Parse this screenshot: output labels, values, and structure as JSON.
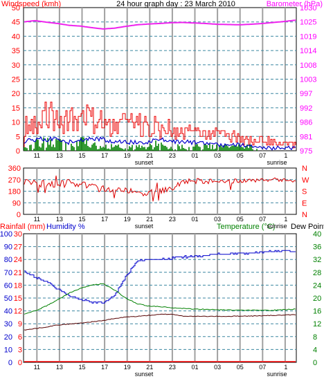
{
  "title": "24 hour graph day : 23 March 2010",
  "colors": {
    "frame": "#000000",
    "grid_v": "#a0a0a0",
    "grid_h": "#3a86a0",
    "wind_axis": "#ff0000",
    "baro_axis": "#ff00ff",
    "dir_axis": "#ff0000",
    "rain_axis": "#ff0000",
    "humidity_axis": "#0000cc",
    "temp_axis": "#008000",
    "wind_gust": "#ee0000",
    "wind_avg_blue": "#0000cc",
    "wind_avg_green": "#008000",
    "barometer_line": "#ee22ee",
    "direction_line": "#dd0000",
    "humidity_line": "#0000cc",
    "temperature_line": "#008000",
    "dewpoint_line": "#550000",
    "rain_line": "#ff0000"
  },
  "x_axis": {
    "ticks": [
      "11",
      "13",
      "15",
      "17",
      "19",
      "21",
      "23",
      "01",
      "03",
      "05",
      "07",
      "1"
    ],
    "sunset_label": "sunset",
    "sunrise_label": "sunrise"
  },
  "panel1": {
    "left_label": "Windspeed (kmh)",
    "right_label": "Barometer (hPa)",
    "left_ticks": [
      "50",
      "45",
      "40",
      "35",
      "30",
      "25",
      "20",
      "15",
      "10",
      "5",
      "0"
    ],
    "right_ticks": [
      "1030",
      "1025",
      "1019",
      "1014",
      "1008",
      "1003",
      "997",
      "992",
      "986",
      "981",
      "975"
    ]
  },
  "panel2": {
    "left_ticks": [
      "360",
      "270",
      "180",
      "90",
      "0"
    ],
    "right_ticks": [
      "N",
      "W",
      "S",
      "E",
      "N"
    ]
  },
  "panel3": {
    "rain_label": "Rainfall (mm)",
    "humidity_label": "Humidity %",
    "temp_label": "Temperature (°C)",
    "dew_label": "Dew Point",
    "rain_ticks": [
      "30",
      "27",
      "24",
      "21",
      "18",
      "15",
      "12",
      "9",
      "6",
      "3",
      "0"
    ],
    "humidity_ticks": [
      "100",
      "90",
      "80",
      "70",
      "60",
      "50",
      "40",
      "30",
      "20",
      "10",
      "0"
    ],
    "temp_ticks": [
      "40",
      "36",
      "32",
      "28",
      "24",
      "20",
      "16",
      "12",
      "8",
      "4",
      "0"
    ]
  },
  "chart_data": [
    {
      "type": "line",
      "title": "24 hour graph day : 23 March 2010",
      "xlabel": "",
      "x": [
        "10",
        "11",
        "12",
        "13",
        "14",
        "15",
        "16",
        "17",
        "18",
        "19",
        "20",
        "21",
        "22",
        "23",
        "00",
        "01",
        "02",
        "03",
        "04",
        "05",
        "06",
        "07",
        "08",
        "09",
        "10"
      ],
      "ylabel": "Windspeed (kmh)",
      "ylim": [
        0,
        50
      ],
      "y2label": "Barometer (hPa)",
      "y2lim": [
        975,
        1030
      ],
      "grid": true,
      "series": [
        {
          "axis": "left",
          "values": [
            14,
            15,
            16,
            16,
            15,
            14,
            15,
            14,
            13,
            12,
            12,
            11,
            11,
            10,
            9,
            9,
            9,
            8,
            7,
            6,
            5,
            5,
            4,
            3,
            3
          ]
        },
        {
          "axis": "left",
          "values": [
            3,
            4,
            4,
            4,
            3,
            4,
            4,
            4,
            3,
            3,
            3,
            3,
            4,
            3,
            3,
            3,
            3,
            2,
            2,
            2,
            2,
            1,
            1,
            1,
            1
          ]
        },
        {
          "axis": "left",
          "values": [
            1,
            2,
            2,
            2,
            1,
            2,
            2,
            1,
            1,
            1,
            1,
            1,
            2,
            1,
            1,
            1,
            1,
            1,
            1,
            1,
            1,
            0,
            0,
            0,
            0
          ]
        },
        {
          "axis": "right",
          "values": [
            1024.5,
            1025.0,
            1024.4,
            1023.9,
            1023.2,
            1022.9,
            1022.3,
            1021.8,
            1022.1,
            1022.8,
            1023.4,
            1023.7,
            1023.9,
            1024.2,
            1024.3,
            1024.1,
            1023.9,
            1023.6,
            1023.5,
            1023.4,
            1023.6,
            1023.9,
            1024.3,
            1024.7,
            1025.2
          ]
        }
      ]
    },
    {
      "type": "line",
      "xlabel": "",
      "x": [
        "10",
        "11",
        "12",
        "13",
        "14",
        "15",
        "16",
        "17",
        "18",
        "19",
        "20",
        "21",
        "22",
        "23",
        "00",
        "01",
        "02",
        "03",
        "04",
        "05",
        "06",
        "07",
        "08",
        "09",
        "10"
      ],
      "ylabel": "",
      "ylim": [
        0,
        360
      ],
      "grid": true,
      "series": [
        {
          "values": [
            245,
            240,
            235,
            230,
            245,
            240,
            210,
            200,
            195,
            190,
            170,
            165,
            180,
            200,
            255,
            260,
            258,
            255,
            260,
            258,
            262,
            268,
            272,
            265,
            262
          ]
        }
      ]
    },
    {
      "type": "line",
      "xlabel": "",
      "x": [
        "10",
        "11",
        "12",
        "13",
        "14",
        "15",
        "16",
        "17",
        "18",
        "19",
        "20",
        "21",
        "22",
        "23",
        "00",
        "01",
        "02",
        "03",
        "04",
        "05",
        "06",
        "07",
        "08",
        "09",
        "10"
      ],
      "ylabel": "Rainfall (mm) / Humidity %",
      "ylim": [
        0,
        100
      ],
      "y2label": "Temperature (°C) Dew Point",
      "y2lim": [
        0,
        40
      ],
      "grid": true,
      "series": [
        {
          "axis": "left",
          "values": [
            0,
            0,
            0,
            0,
            0,
            0,
            0,
            0,
            0,
            0,
            0,
            0,
            0,
            0,
            0,
            0,
            0,
            0,
            0,
            0,
            0,
            0,
            0,
            0,
            0
          ]
        },
        {
          "axis": "left",
          "values": [
            71,
            66,
            63,
            57,
            52,
            49,
            47,
            46,
            52,
            67,
            79,
            80,
            80,
            81,
            82,
            82,
            83,
            84,
            84,
            85,
            85,
            86,
            86,
            87,
            86
          ]
        },
        {
          "axis": "right",
          "values": [
            15,
            16,
            17.5,
            19.5,
            21.5,
            23,
            24,
            24.5,
            22.5,
            20,
            18.2,
            17.5,
            17.3,
            17,
            16.8,
            16.6,
            16.5,
            16.3,
            16.3,
            16.2,
            16.2,
            16.2,
            16.2,
            16.4,
            16.6
          ]
        },
        {
          "axis": "right",
          "values": [
            10,
            10.5,
            11,
            11.6,
            11.9,
            12.2,
            12.6,
            13,
            13.6,
            14.1,
            14.3,
            14.6,
            14.9,
            15,
            14.4,
            14.3,
            14.3,
            14.3,
            14.3,
            14.4,
            14.4,
            14.5,
            14.6,
            14.7,
            14.8
          ]
        }
      ]
    }
  ]
}
